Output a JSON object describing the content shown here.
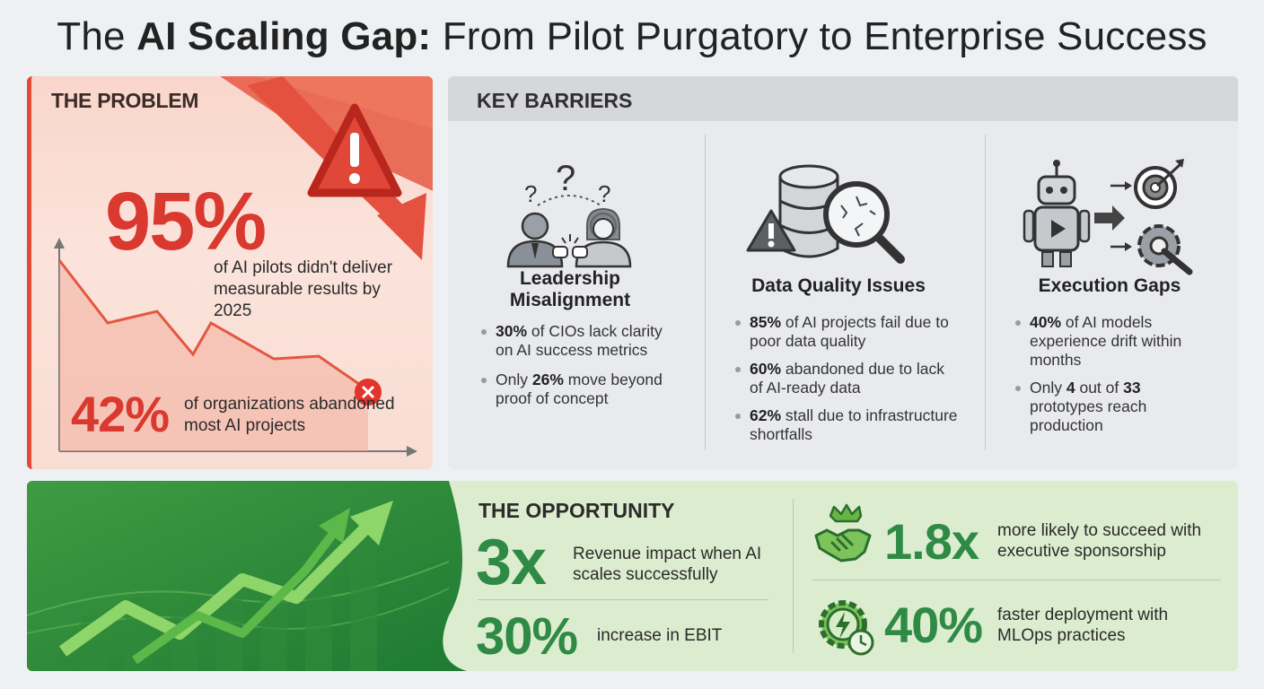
{
  "title": {
    "prefix": "The ",
    "bold": "AI Scaling Gap:",
    "suffix": " From Pilot Purgatory to Enterprise Success"
  },
  "problem": {
    "header": "THE PROBLEM",
    "stat1_value": "95%",
    "stat1_caption": "of AI pilots didn't deliver measurable results by 2025",
    "stat2_value": "42%",
    "stat2_caption": "of organizations abandoned most AI projects",
    "icons": [
      "warning-triangle-icon",
      "down-trend-arrow-icon",
      "failure-x-icon"
    ]
  },
  "barriers": {
    "header": "KEY BARRIERS",
    "columns": [
      {
        "title_line1": "Leadership",
        "title_line2": "Misalignment",
        "icon": "leadership-conflict-icon",
        "bullets": [
          {
            "bold": "30%",
            "text": " of CIOs lack clarity on AI success metrics"
          },
          {
            "pre": "Only ",
            "bold": "26%",
            "text": " move beyond proof of concept"
          }
        ]
      },
      {
        "title_line1": "Data Quality Issues",
        "icon": "database-magnifier-icon",
        "bullets": [
          {
            "bold": "85%",
            "text": " of AI projects fail due to poor data quality"
          },
          {
            "bold": "60%",
            "text": " abandoned due to lack of AI-ready data"
          },
          {
            "bold": "62%",
            "text": " stall due to infrastructure shortfalls"
          }
        ]
      },
      {
        "title_line1": "Execution Gaps",
        "icon": "robot-target-gear-icon",
        "bullets": [
          {
            "bold": "40%",
            "text": " of AI models experience drift within months"
          },
          {
            "pre": "Only ",
            "bold": "4",
            "mid": " out of ",
            "bold2": "33",
            "text": " prototypes reach production"
          }
        ]
      }
    ]
  },
  "opportunity": {
    "header": "THE OPPORTUNITY",
    "stats": [
      {
        "value": "3x",
        "text": "Revenue impact when AI scales successfully"
      },
      {
        "value": "30%",
        "text": "increase in EBIT"
      },
      {
        "value": "1.8x",
        "text": "more likely to succeed with executive sponsorship",
        "icon": "handshake-crown-icon"
      },
      {
        "value": "40%",
        "text": "faster deployment with MLOps practices",
        "icon": "gear-lightning-clock-icon"
      }
    ]
  },
  "colors": {
    "problem_red": "#d9392f",
    "opportunity_green": "#2f8a45",
    "barrier_gray": "#e9eaed"
  }
}
